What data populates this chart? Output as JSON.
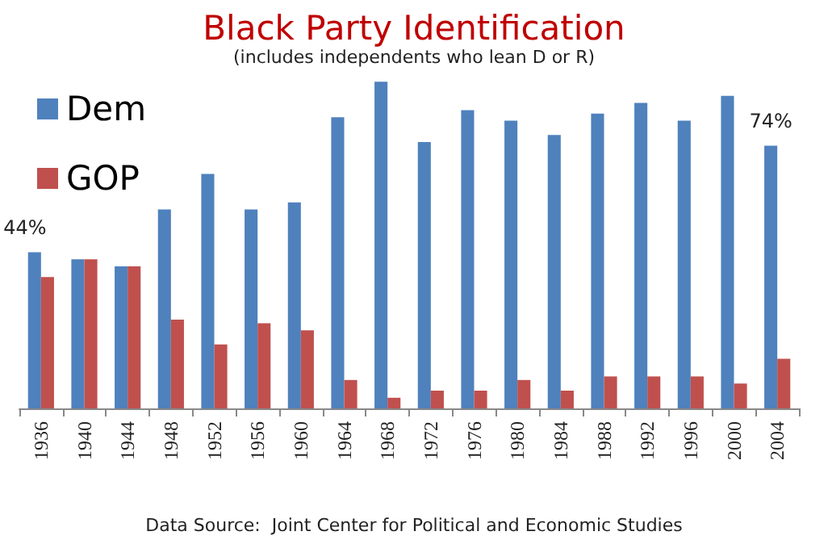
{
  "chart_data": {
    "type": "bar",
    "title": "Black Party Identification",
    "subtitle": "(includes independents who lean D or R)",
    "categories": [
      "1936",
      "1940",
      "1944",
      "1948",
      "1952",
      "1956",
      "1960",
      "1964",
      "1968",
      "1972",
      "1976",
      "1980",
      "1984",
      "1988",
      "1992",
      "1996",
      "2000",
      "2004"
    ],
    "series": [
      {
        "name": "Dem",
        "color": "#4f81bd",
        "values": [
          44,
          42,
          40,
          56,
          66,
          56,
          58,
          82,
          92,
          75,
          84,
          81,
          77,
          83,
          86,
          81,
          88,
          74
        ],
        "value_labels": [
          "44%",
          null,
          null,
          null,
          null,
          null,
          null,
          null,
          null,
          null,
          null,
          null,
          null,
          null,
          null,
          null,
          null,
          "74%"
        ]
      },
      {
        "name": "GOP",
        "color": "#c0504d",
        "values": [
          37,
          42,
          40,
          25,
          18,
          24,
          22,
          8,
          3,
          5,
          5,
          8,
          5,
          9,
          9,
          9,
          7,
          14
        ]
      }
    ],
    "legend": "top left",
    "tick_labels": "x",
    "annotations": [
      "Data Source:  Joint Center for Political and Economic Studies"
    ]
  }
}
